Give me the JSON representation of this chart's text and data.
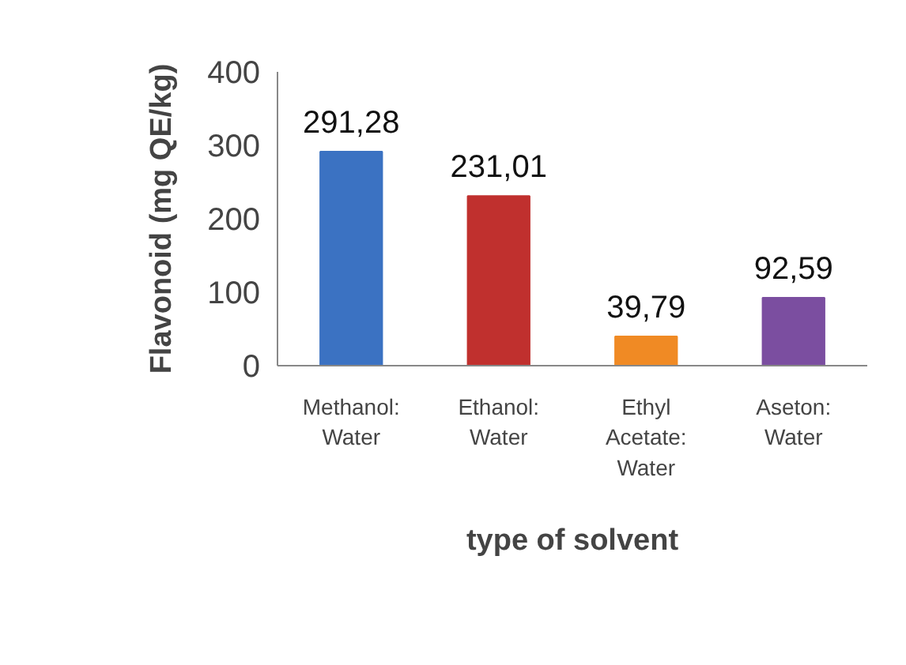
{
  "chart_data": {
    "type": "bar",
    "xlabel": "type of solvent",
    "ylabel": "Flavonoid (mg QE/kg)",
    "categories": [
      "Methanol:\nWater",
      "Ethanol:\nWater",
      "Ethyl\nAcetate:\nWater",
      "Aseton:\nWater"
    ],
    "values": [
      291.28,
      231.01,
      39.79,
      92.59
    ],
    "colors": [
      "#3b72c2",
      "#c0302e",
      "#f08a24",
      "#7b4ea0"
    ],
    "value_labels": [
      "291,28",
      "231,01",
      "39,79",
      "92,59"
    ],
    "ylim": [
      0,
      400
    ],
    "yticks": [
      0,
      100,
      200,
      300,
      400
    ],
    "grid": false
  }
}
